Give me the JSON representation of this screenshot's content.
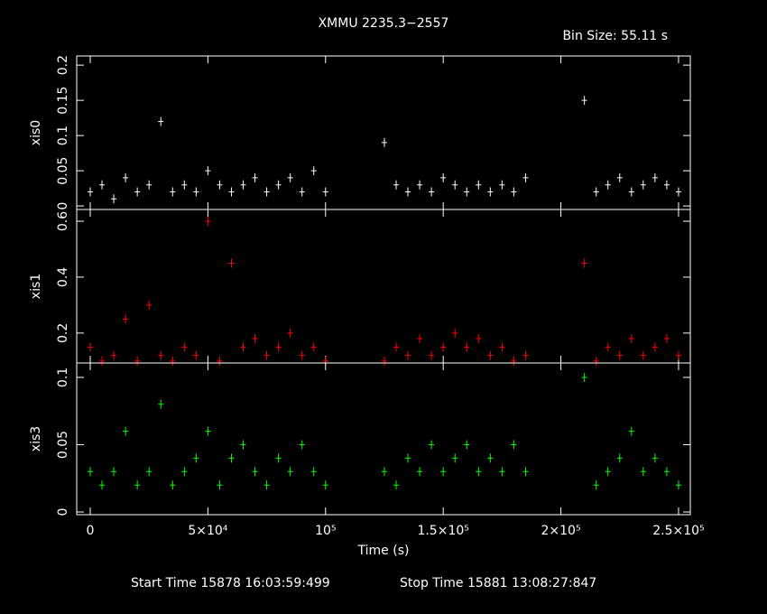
{
  "title": "XMMU 2235.3−2557",
  "bin_size": "Bin Size: 55.11 s",
  "start_time": "Start Time 15878 16:03:59:499",
  "stop_time": "Stop Time 15881 13:08:27:847",
  "chart_data": [
    {
      "type": "scatter",
      "ylabel": "xis0",
      "color": "#ffffff",
      "x": [
        0,
        5000,
        10000,
        15000,
        20000,
        25000,
        30000,
        35000,
        40000,
        45000,
        50000,
        55000,
        60000,
        65000,
        70000,
        75000,
        80000,
        85000,
        90000,
        95000,
        100000,
        125000,
        130000,
        135000,
        140000,
        145000,
        150000,
        155000,
        160000,
        165000,
        170000,
        175000,
        180000,
        185000,
        210000,
        215000,
        220000,
        225000,
        230000,
        235000,
        240000,
        245000,
        250000
      ],
      "values": [
        0.02,
        0.03,
        0.01,
        0.04,
        0.02,
        0.03,
        0.12,
        0.02,
        0.03,
        0.02,
        0.05,
        0.03,
        0.02,
        0.03,
        0.04,
        0.02,
        0.03,
        0.04,
        0.02,
        0.05,
        0.02,
        0.09,
        0.03,
        0.02,
        0.03,
        0.02,
        0.04,
        0.03,
        0.02,
        0.03,
        0.02,
        0.03,
        0.02,
        0.04,
        0.15,
        0.02,
        0.03,
        0.04,
        0.02,
        0.03,
        0.04,
        0.03,
        0.02
      ],
      "xlim": [
        -5750,
        255000
      ],
      "xticks": [
        0,
        50000,
        100000,
        150000,
        200000,
        250000
      ],
      "ylim": [
        -0.005,
        0.213
      ],
      "yticks": [
        0,
        0.05,
        0.1,
        0.15,
        0.2
      ]
    },
    {
      "type": "scatter",
      "ylabel": "xis1",
      "color": "#ff0000",
      "x": [
        0,
        5000,
        10000,
        15000,
        20000,
        25000,
        30000,
        35000,
        40000,
        45000,
        50000,
        55000,
        60000,
        65000,
        70000,
        75000,
        80000,
        85000,
        90000,
        95000,
        100000,
        125000,
        130000,
        135000,
        140000,
        145000,
        150000,
        155000,
        160000,
        165000,
        170000,
        175000,
        180000,
        185000,
        210000,
        215000,
        220000,
        225000,
        230000,
        235000,
        240000,
        245000,
        250000
      ],
      "values": [
        0.15,
        0.1,
        0.12,
        0.25,
        0.1,
        0.3,
        0.12,
        0.1,
        0.15,
        0.12,
        0.6,
        0.1,
        0.45,
        0.15,
        0.18,
        0.12,
        0.15,
        0.2,
        0.12,
        0.15,
        0.1,
        0.1,
        0.15,
        0.12,
        0.18,
        0.12,
        0.15,
        0.2,
        0.15,
        0.18,
        0.12,
        0.15,
        0.1,
        0.12,
        0.45,
        0.1,
        0.15,
        0.12,
        0.18,
        0.12,
        0.15,
        0.18,
        0.12
      ],
      "xlim": [
        -5750,
        255000
      ],
      "xticks": [
        0,
        50000,
        100000,
        150000,
        200000,
        250000
      ],
      "ylim": [
        0.093,
        0.642
      ],
      "yticks": [
        0.2,
        0.4,
        0.6
      ]
    },
    {
      "type": "scatter",
      "ylabel": "xis3",
      "xlabel": "Time (s)",
      "color": "#00ff00",
      "x": [
        0,
        5000,
        10000,
        15000,
        20000,
        25000,
        30000,
        35000,
        40000,
        45000,
        50000,
        55000,
        60000,
        65000,
        70000,
        75000,
        80000,
        85000,
        90000,
        95000,
        100000,
        125000,
        130000,
        135000,
        140000,
        145000,
        150000,
        155000,
        160000,
        165000,
        170000,
        175000,
        180000,
        185000,
        210000,
        215000,
        220000,
        225000,
        230000,
        235000,
        240000,
        245000,
        250000
      ],
      "values": [
        0.03,
        0.02,
        0.03,
        0.06,
        0.02,
        0.03,
        0.08,
        0.02,
        0.03,
        0.04,
        0.06,
        0.02,
        0.04,
        0.05,
        0.03,
        0.02,
        0.04,
        0.03,
        0.05,
        0.03,
        0.02,
        0.03,
        0.02,
        0.04,
        0.03,
        0.05,
        0.03,
        0.04,
        0.05,
        0.03,
        0.04,
        0.03,
        0.05,
        0.03,
        0.1,
        0.02,
        0.03,
        0.04,
        0.06,
        0.03,
        0.04,
        0.03,
        0.02
      ],
      "xlim": [
        -5750,
        255000
      ],
      "xticks": [
        0,
        {
          "value": 50000,
          "label": "5×10⁴"
        },
        {
          "value": 100000,
          "label": "10⁵"
        },
        {
          "value": 150000,
          "label": "1.5×10⁵"
        },
        {
          "value": 200000,
          "label": "2×10⁵"
        },
        {
          "value": 250000,
          "label": "2.5×10⁵"
        }
      ],
      "ylim": [
        -0.002,
        0.1107
      ],
      "yticks": [
        0,
        0.05,
        0.1
      ]
    }
  ]
}
